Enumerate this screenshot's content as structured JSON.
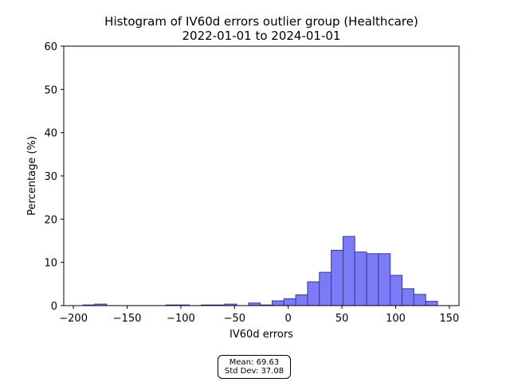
{
  "chart_data": {
    "type": "bar",
    "title": "Histogram of IV60d errors outlier group (Healthcare)",
    "subtitle": "2022-01-01 to 2024-01-01",
    "xlabel": "IV60d errors",
    "ylabel": "Percentage (%)",
    "xlim": [
      -209,
      159
    ],
    "ylim": [
      0,
      60
    ],
    "xticks": [
      -200,
      -150,
      -100,
      -50,
      0,
      50,
      100,
      150
    ],
    "yticks": [
      0,
      10,
      20,
      30,
      40,
      50,
      60
    ],
    "bin_width": 11,
    "bins": [
      {
        "x0": -191,
        "x1": -180,
        "value": 0.15
      },
      {
        "x0": -180,
        "x1": -169,
        "value": 0.35
      },
      {
        "x0": -114,
        "x1": -103,
        "value": 0.15
      },
      {
        "x0": -103,
        "x1": -92,
        "value": 0.15
      },
      {
        "x0": -81,
        "x1": -70,
        "value": 0.15
      },
      {
        "x0": -70,
        "x1": -59,
        "value": 0.15
      },
      {
        "x0": -59,
        "x1": -48,
        "value": 0.35
      },
      {
        "x0": -37,
        "x1": -26,
        "value": 0.6
      },
      {
        "x0": -26,
        "x1": -15,
        "value": 0.15
      },
      {
        "x0": -15,
        "x1": -4,
        "value": 1.1
      },
      {
        "x0": -4,
        "x1": 7,
        "value": 1.6
      },
      {
        "x0": 7,
        "x1": 18,
        "value": 2.5
      },
      {
        "x0": 18,
        "x1": 29,
        "value": 5.5
      },
      {
        "x0": 29,
        "x1": 40,
        "value": 7.7
      },
      {
        "x0": 40,
        "x1": 51,
        "value": 12.8
      },
      {
        "x0": 51,
        "x1": 62,
        "value": 16.0
      },
      {
        "x0": 62,
        "x1": 73,
        "value": 12.4
      },
      {
        "x0": 73,
        "x1": 84,
        "value": 12.0
      },
      {
        "x0": 84,
        "x1": 95,
        "value": 12.0
      },
      {
        "x0": 95,
        "x1": 106,
        "value": 7.0
      },
      {
        "x0": 106,
        "x1": 117,
        "value": 3.9
      },
      {
        "x0": 117,
        "x1": 128,
        "value": 2.6
      },
      {
        "x0": 128,
        "x1": 139,
        "value": 1.0
      }
    ],
    "colors": {
      "fill": "#7b7bf7",
      "edge": "#3a3a8a"
    },
    "grid": false
  },
  "stats": {
    "mean": "Mean: 69.63",
    "std": "Std Dev: 37.08"
  }
}
